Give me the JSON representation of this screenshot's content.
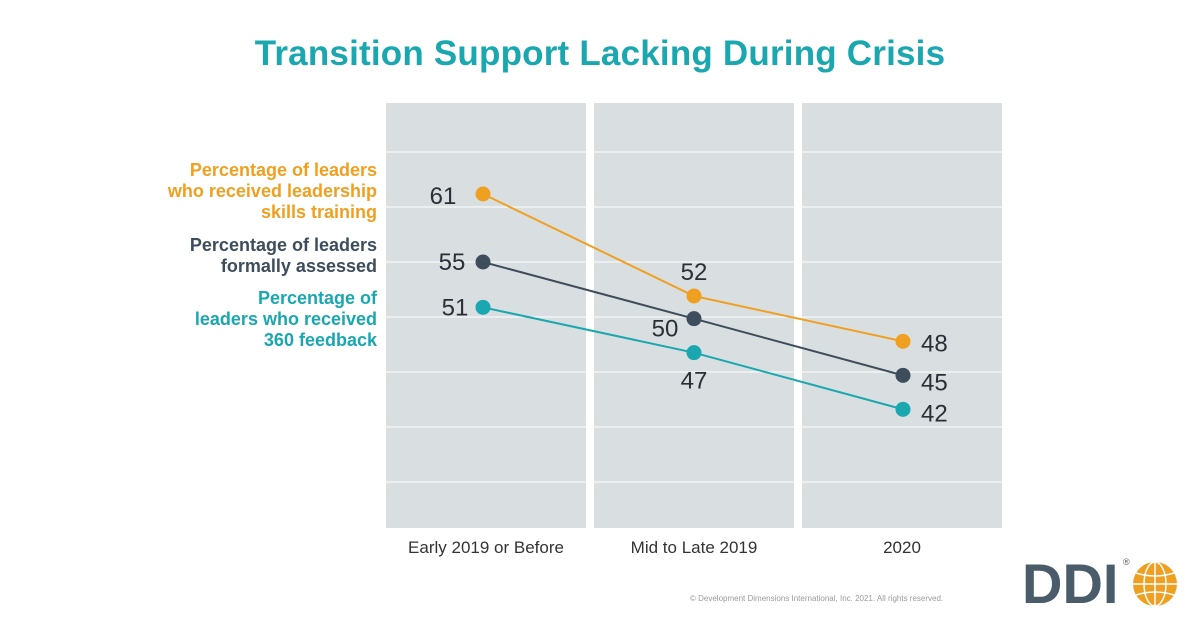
{
  "title": "Transition Support Lacking During Crisis",
  "copyright": "© Development Dimensions International, Inc. 2021. All rights reserved.",
  "logo": {
    "text": "DDI",
    "mark": "®"
  },
  "colors": {
    "title": "#1aa7b0",
    "panel": "#d9dfe1",
    "training": "#f0a020",
    "assessed": "#3d4d5c",
    "feedback": "#1aa7b0",
    "logo_text": "#4a5b6a",
    "globe": "#f0a020"
  },
  "chart_data": {
    "type": "line",
    "categories": [
      "Early 2019 or Before",
      "Mid to Late 2019",
      "2020"
    ],
    "ylim": [
      20,
      70
    ],
    "grid": true,
    "legend_position": "left",
    "series": [
      {
        "key": "training",
        "name": "Percentage of leaders who received leadership skills training",
        "name_lines": [
          "Percentage of leaders",
          "who received leadership",
          "skills training"
        ],
        "values": [
          61,
          52,
          48
        ],
        "value_labels": [
          "61",
          "52",
          "48"
        ]
      },
      {
        "key": "assessed",
        "name": "Percentage of leaders formally assessed",
        "name_lines": [
          "Percentage of leaders",
          "formally assessed"
        ],
        "values": [
          55,
          50,
          45
        ],
        "value_labels": [
          "55",
          "50",
          "45"
        ]
      },
      {
        "key": "feedback",
        "name": "Percentage of leaders who received 360 feedback",
        "name_lines": [
          "Percentage of",
          "leaders who received",
          "360 feedback"
        ],
        "values": [
          51,
          47,
          42
        ],
        "value_labels": [
          "51",
          "47",
          "42"
        ]
      }
    ]
  }
}
